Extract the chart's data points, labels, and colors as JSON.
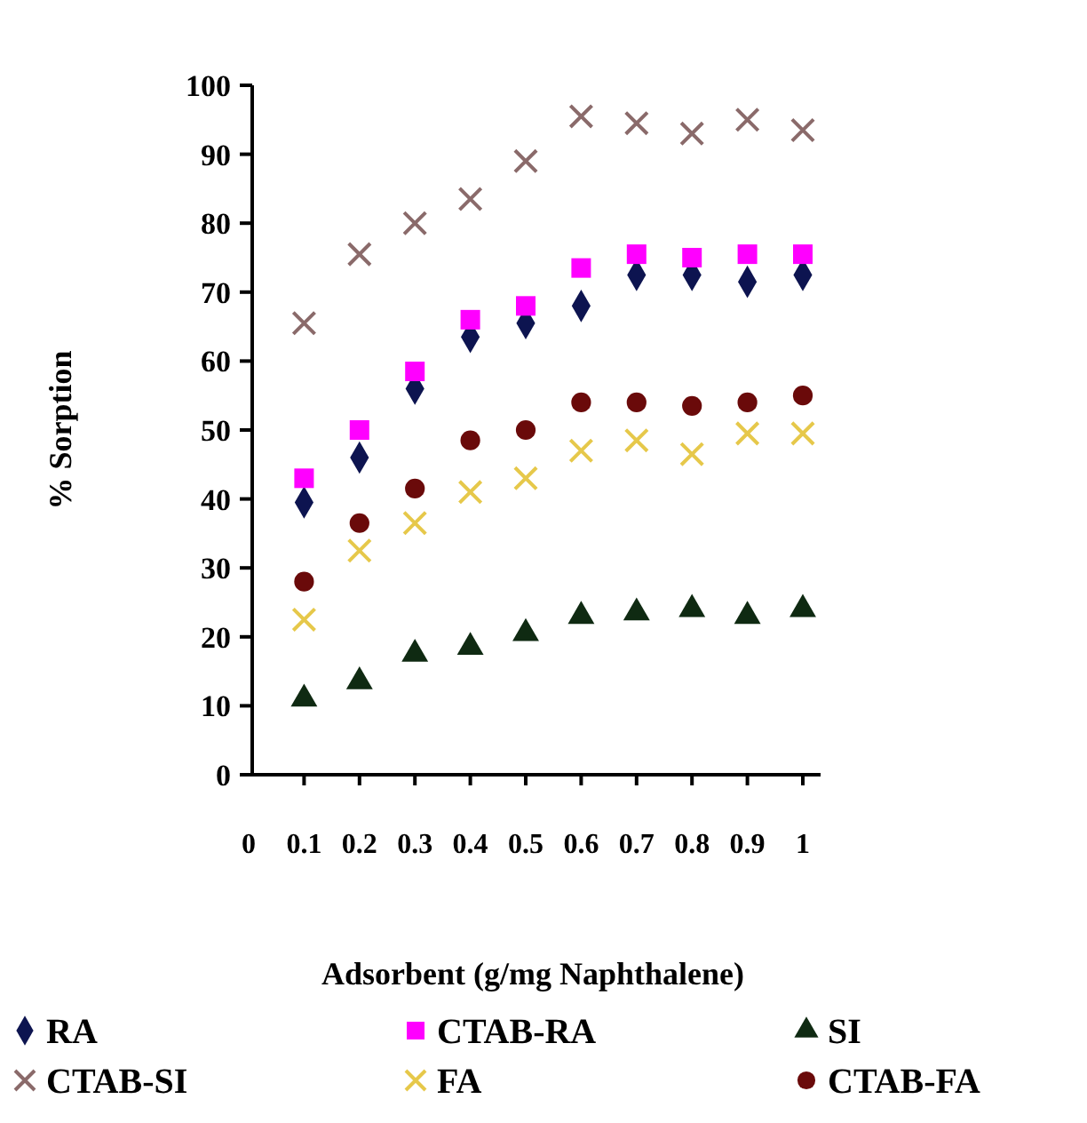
{
  "chart_data": {
    "type": "scatter",
    "xlabel": "Adsorbent (g/mg Naphthalene)",
    "ylabel": "% Sorption",
    "categories": [
      "0",
      "0.1",
      "0.2",
      "0.3",
      "0.4",
      "0.5",
      "0.6",
      "0.7",
      "0.8",
      "0.9",
      "1"
    ],
    "ylim": [
      0,
      100
    ],
    "yticks": [
      0,
      10,
      20,
      30,
      40,
      50,
      60,
      70,
      80,
      90,
      100
    ],
    "grid": false,
    "legend": "bottom",
    "series": [
      {
        "name": "RA",
        "color": "#0d1450",
        "marker": "diamond",
        "values": [
          null,
          39.5,
          46,
          56,
          63.5,
          65.5,
          68,
          72.5,
          72.5,
          71.5,
          72.5
        ]
      },
      {
        "name": "CTAB-RA",
        "color": "#ff00ff",
        "marker": "square",
        "values": [
          null,
          43,
          50,
          58.5,
          66,
          68,
          73.5,
          75.5,
          75,
          75.5,
          75.5
        ]
      },
      {
        "name": "SI",
        "color": "#0f2a12",
        "marker": "triangle",
        "values": [
          null,
          11,
          13.5,
          17.5,
          18.5,
          20.5,
          23,
          23.5,
          24,
          23,
          24
        ]
      },
      {
        "name": "CTAB-SI",
        "color": "#8a6a6a",
        "marker": "cross",
        "values": [
          null,
          65.5,
          75.5,
          80,
          83.5,
          89,
          95.5,
          94.5,
          93,
          95,
          93.5
        ]
      },
      {
        "name": "FA",
        "color": "#e6c84a",
        "marker": "cross",
        "values": [
          null,
          22.5,
          32.5,
          36.5,
          41,
          43,
          47,
          48.5,
          46.5,
          49.5,
          49.5
        ]
      },
      {
        "name": "CTAB-FA",
        "color": "#6a0a0a",
        "marker": "circle",
        "values": [
          null,
          28,
          36.5,
          41.5,
          48.5,
          50,
          54,
          54,
          53.5,
          54,
          55
        ]
      }
    ]
  }
}
